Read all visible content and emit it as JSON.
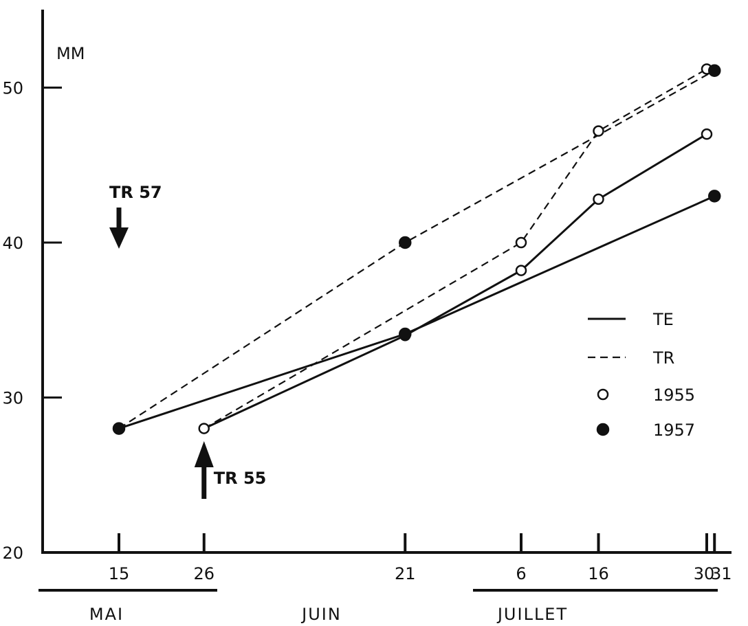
{
  "chart_data": {
    "type": "line",
    "ylabel": "MM",
    "ylim": [
      20,
      54
    ],
    "yticks": [
      20,
      30,
      40,
      50
    ],
    "grid": false,
    "x_ticks": [
      "15",
      "26",
      "21",
      "6",
      "16",
      "30",
      "31"
    ],
    "x_tick_dates": [
      "05-15",
      "05-26",
      "06-21",
      "07-06",
      "07-16",
      "07-30",
      "07-31"
    ],
    "months": [
      {
        "label": "MAI",
        "underlined": true
      },
      {
        "label": "JUIN",
        "underlined": false
      },
      {
        "label": "JUILLET",
        "underlined": true
      }
    ],
    "series": [
      {
        "name": "TE 1955",
        "points": [
          [
            "05-26",
            28
          ],
          [
            "06-21",
            34
          ],
          [
            "07-06",
            38.2
          ],
          [
            "07-16",
            42.8
          ],
          [
            "07-30",
            47
          ]
        ]
      },
      {
        "name": "TR 1955",
        "points": [
          [
            "05-26",
            28
          ],
          [
            "07-06",
            40
          ],
          [
            "07-16",
            47.2
          ],
          [
            "07-30",
            51.2
          ]
        ]
      },
      {
        "name": "TE 1957",
        "points": [
          [
            "05-15",
            28
          ],
          [
            "06-21",
            34.1
          ],
          [
            "07-31",
            43
          ]
        ]
      },
      {
        "name": "TR 1957",
        "points": [
          [
            "05-15",
            28
          ],
          [
            "06-21",
            40
          ],
          [
            "07-31",
            51.1
          ]
        ]
      }
    ],
    "legend": {
      "position": "right",
      "entries": [
        {
          "label": "TE",
          "kind": "line-solid"
        },
        {
          "label": "TR",
          "kind": "line-dashed"
        },
        {
          "label": "1955",
          "kind": "marker-open"
        },
        {
          "label": "1957",
          "kind": "marker-filled"
        }
      ]
    },
    "annotations": [
      {
        "label": "TR 57",
        "date": "05-15",
        "arrow": "down"
      },
      {
        "label": "TR 55",
        "date": "05-26",
        "arrow": "up"
      }
    ]
  }
}
